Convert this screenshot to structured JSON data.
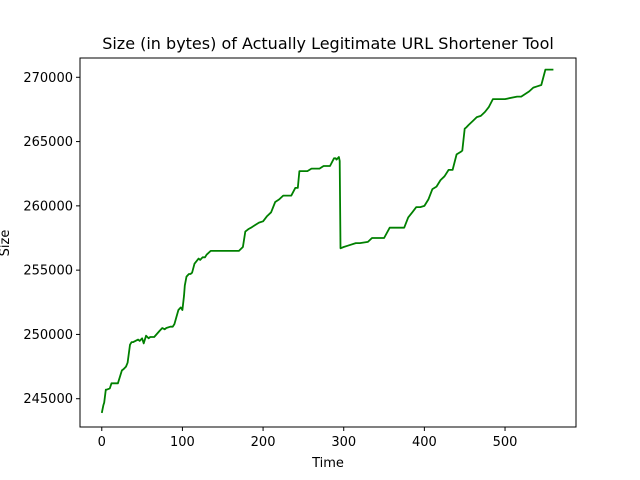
{
  "chart_data": {
    "type": "line",
    "title": "Size (in bytes) of Actually Legitimate URL Shortener Tool",
    "xlabel": "Time",
    "ylabel": "Size",
    "xlim": [
      -27,
      588
    ],
    "ylim": [
      242800,
      271500
    ],
    "xticks": [
      0,
      100,
      200,
      300,
      400,
      500
    ],
    "yticks": [
      245000,
      250000,
      255000,
      260000,
      265000,
      270000
    ],
    "grid": false,
    "legend": "none",
    "series": [
      {
        "color": "#008000",
        "x": [
          0,
          2,
          3,
          4,
          5,
          6,
          10,
          12,
          20,
          25,
          27,
          30,
          32,
          35,
          37,
          39,
          45,
          47,
          50,
          52,
          55,
          58,
          60,
          65,
          72,
          75,
          78,
          80,
          85,
          88,
          90,
          95,
          98,
          100,
          102,
          103,
          105,
          108,
          110,
          112,
          115,
          120,
          122,
          125,
          128,
          130,
          135,
          140,
          143,
          145,
          150,
          160,
          170,
          175,
          178,
          180,
          182,
          185,
          190,
          195,
          200,
          205,
          210,
          215,
          220,
          225,
          235,
          240,
          243,
          245,
          255,
          260,
          270,
          275,
          283,
          288,
          290,
          291,
          294,
          295,
          296,
          300,
          305,
          315,
          320,
          330,
          335,
          340,
          350,
          357,
          360,
          365,
          375,
          380,
          385,
          390,
          395,
          400,
          405,
          410,
          415,
          420,
          425,
          430,
          435,
          440,
          445,
          447,
          450,
          452,
          455,
          460,
          465,
          470,
          475,
          480,
          485,
          490,
          500,
          515,
          520,
          530,
          535,
          540,
          545,
          550,
          555,
          560
        ],
        "y": [
          243900,
          244500,
          244700,
          245200,
          245700,
          245700,
          245800,
          246200,
          246200,
          247200,
          247300,
          247500,
          247800,
          249200,
          249400,
          249400,
          249600,
          249500,
          249700,
          249300,
          249900,
          249700,
          249800,
          249800,
          250300,
          250500,
          250400,
          250500,
          250600,
          250600,
          250800,
          251900,
          252100,
          251900,
          253000,
          253800,
          254500,
          254700,
          254700,
          254800,
          255500,
          255900,
          255800,
          256000,
          256000,
          256200,
          256500,
          256500,
          256500,
          256500,
          256500,
          256500,
          256500,
          256800,
          258000,
          258100,
          258200,
          258300,
          258500,
          258700,
          258800,
          259200,
          259500,
          260300,
          260500,
          260800,
          260800,
          261400,
          261400,
          262700,
          262700,
          262900,
          262900,
          263100,
          263100,
          263700,
          263700,
          263600,
          263800,
          263500,
          256700,
          256800,
          256900,
          257100,
          257100,
          257200,
          257500,
          257500,
          257500,
          258300,
          258300,
          258300,
          258300,
          259100,
          259500,
          259900,
          259900,
          260000,
          260500,
          261300,
          261500,
          262000,
          262300,
          262800,
          262800,
          264000,
          264200,
          264300,
          266000,
          266100,
          266300,
          266600,
          266900,
          267000,
          267300,
          267700,
          268300,
          268300,
          268300,
          268500,
          268500,
          268900,
          269200,
          269300,
          269400,
          270600,
          270600,
          270600
        ]
      }
    ]
  }
}
